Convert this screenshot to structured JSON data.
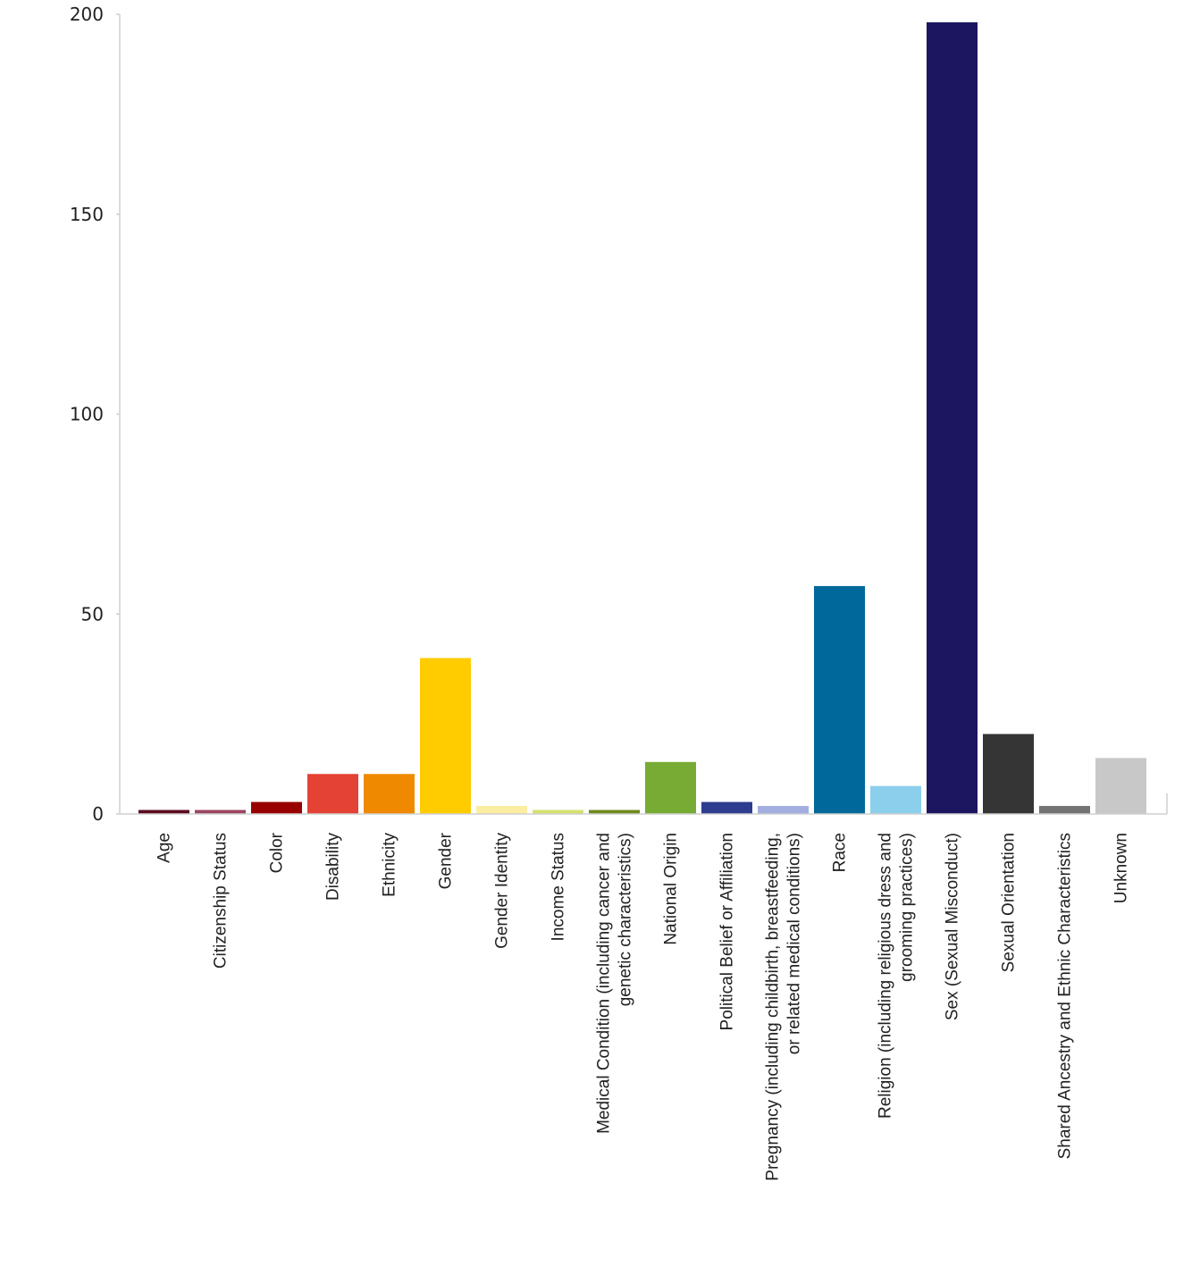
{
  "chart_data": {
    "type": "bar",
    "title": "",
    "xlabel": "",
    "ylabel": "",
    "ylim": [
      0,
      200
    ],
    "yticks": [
      0,
      50,
      100,
      150,
      200
    ],
    "grid": false,
    "categories": [
      [
        "Age"
      ],
      [
        "Citizenship Status"
      ],
      [
        "Color"
      ],
      [
        "Disability"
      ],
      [
        "Ethnicity"
      ],
      [
        "Gender"
      ],
      [
        "Gender Identity"
      ],
      [
        "Income Status"
      ],
      [
        "Medical Condition (including cancer and",
        "genetic characteristics)"
      ],
      [
        "National Origin"
      ],
      [
        "Political Belief or Affiliation"
      ],
      [
        "Pregnancy (including childbirth, breastfeeding,",
        "or related medical conditions)"
      ],
      [
        "Race"
      ],
      [
        "Religion (including religious dress and",
        "grooming practices)"
      ],
      [
        "Sex (Sexual Misconduct)"
      ],
      [
        "Sexual Orientation"
      ],
      [
        "Shared Ancestry and Ethnic Characteristics"
      ],
      [
        "Unknown"
      ]
    ],
    "values": [
      1,
      1,
      3,
      10,
      10,
      39,
      2,
      1,
      1,
      13,
      3,
      2,
      57,
      7,
      198,
      20,
      2,
      14
    ],
    "colors": [
      "#5c0a1e",
      "#9c4660",
      "#990000",
      "#e34234",
      "#ef8a00",
      "#ffcc00",
      "#fbeea0",
      "#d5e16e",
      "#6f8a1e",
      "#78ab34",
      "#2e3d8f",
      "#a3aee0",
      "#00689a",
      "#8ccfec",
      "#1c1660",
      "#353535",
      "#737373",
      "#c8c8c8"
    ]
  }
}
